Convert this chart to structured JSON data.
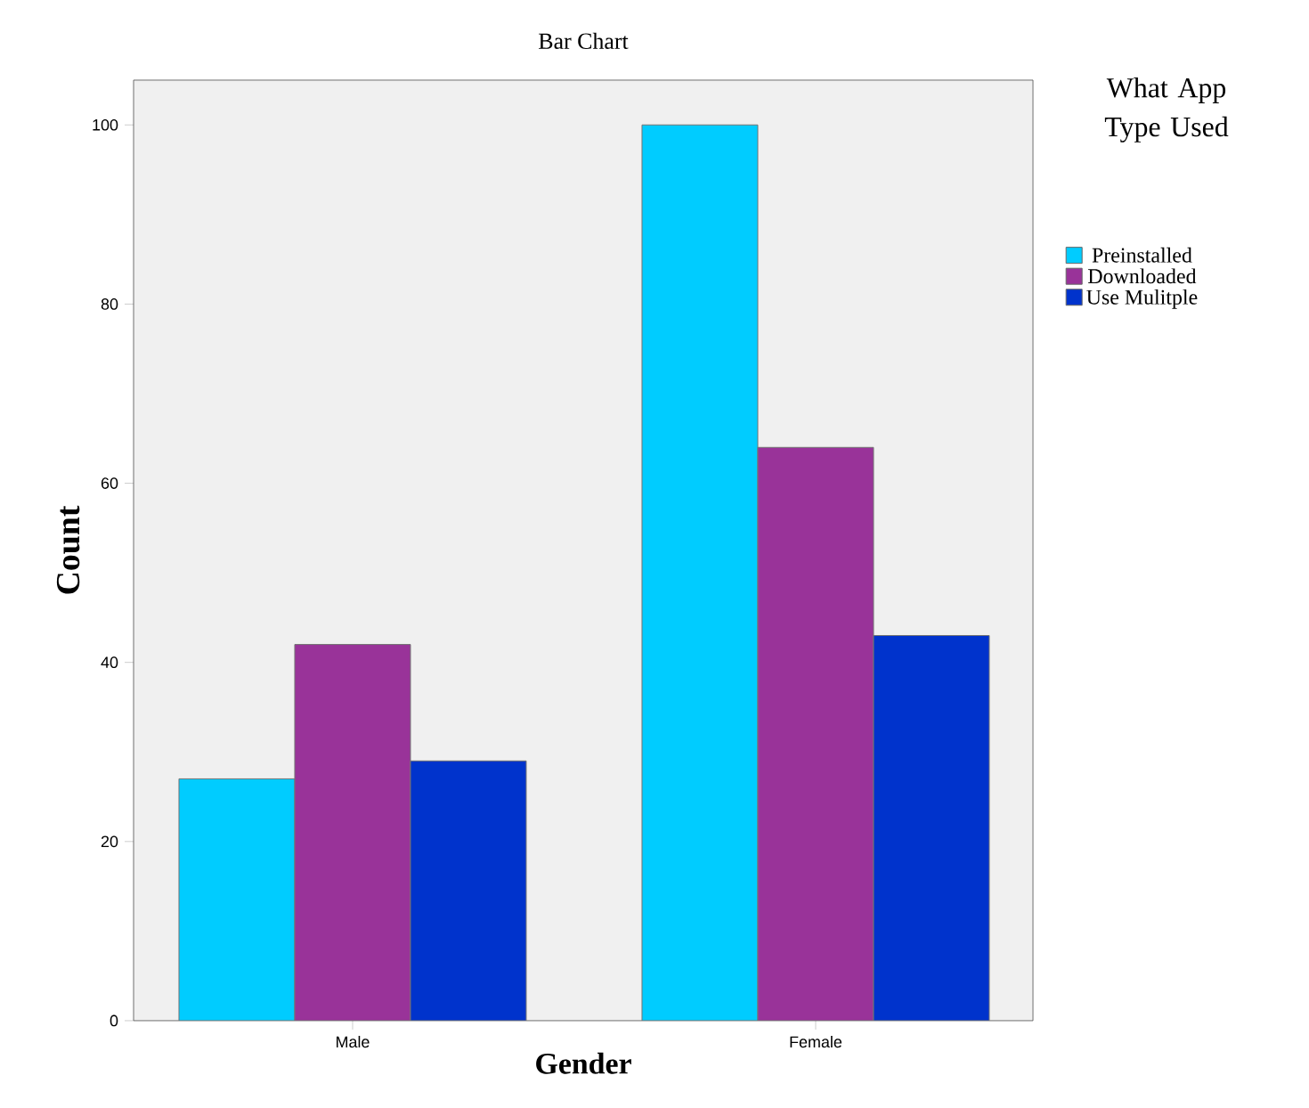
{
  "chart_data": {
    "type": "bar",
    "title": "Bar Chart",
    "xlabel": "Gender",
    "ylabel": "Count",
    "legend_title": "What App Type Used",
    "categories": [
      "Male",
      "Female"
    ],
    "series": [
      {
        "name": "Preinstalled",
        "color": "#00ccff",
        "values": [
          27,
          100
        ]
      },
      {
        "name": "Downloaded",
        "color": "#993399",
        "values": [
          42,
          64
        ]
      },
      {
        "name": "Use Mulitple",
        "color": "#0033cc",
        "values": [
          29,
          43
        ]
      }
    ],
    "ylim": [
      0,
      105
    ],
    "yticks": [
      0,
      20,
      40,
      60,
      80,
      100
    ],
    "grid": false,
    "legend": "right"
  }
}
